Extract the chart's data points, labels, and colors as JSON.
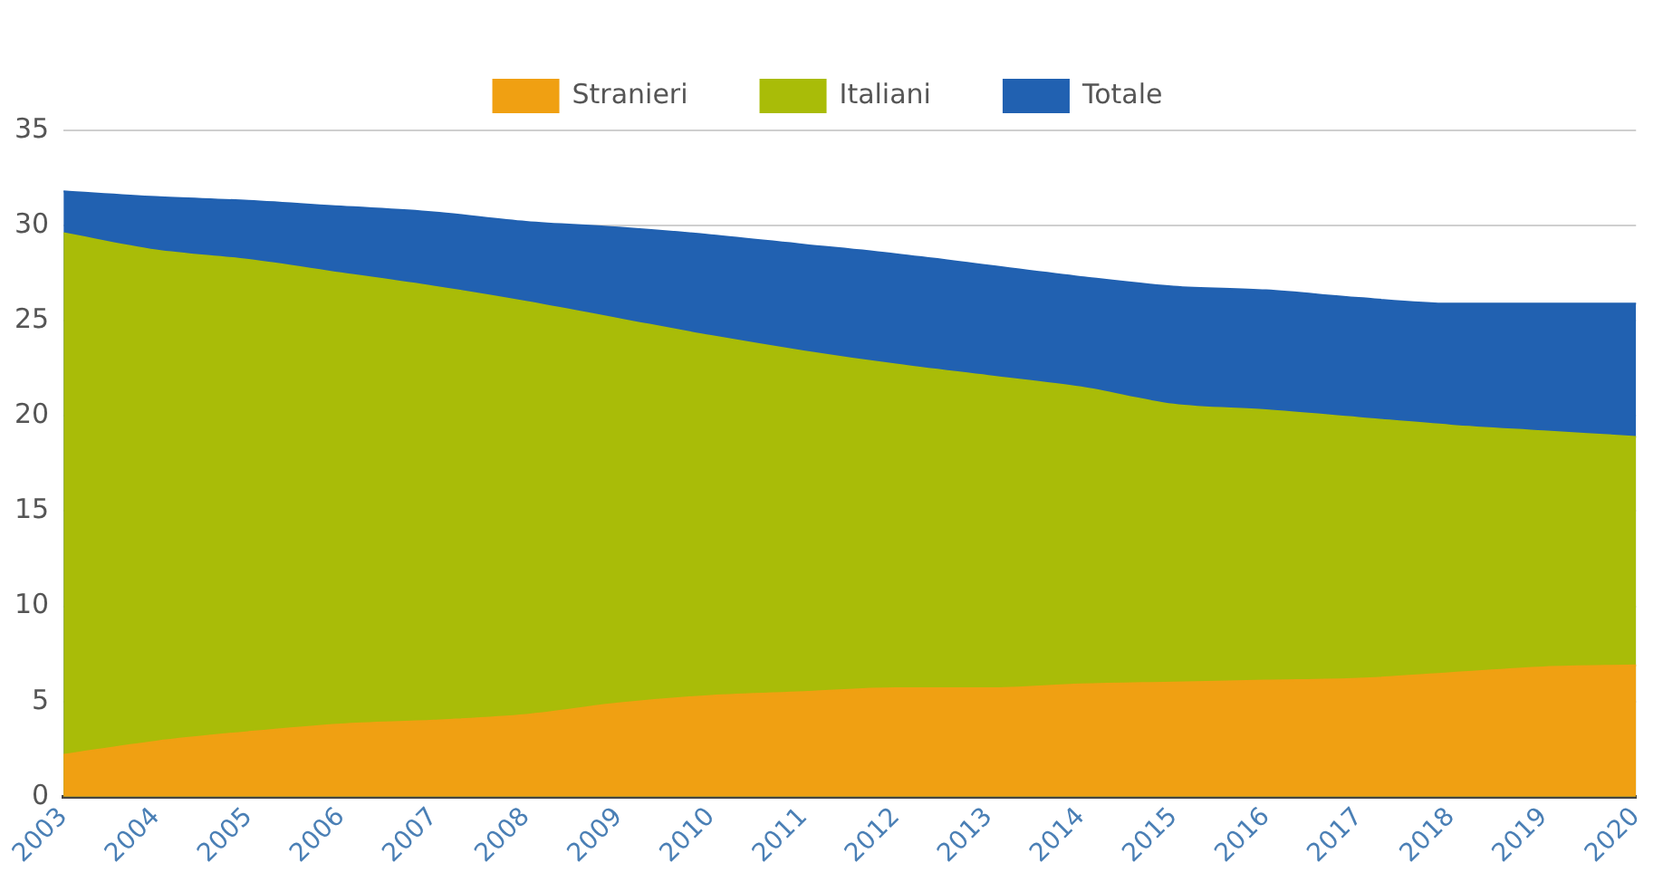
{
  "chart_data": {
    "type": "area",
    "categories": [
      "2003",
      "2004",
      "2005",
      "2006",
      "2007",
      "2008",
      "2009",
      "2010",
      "2011",
      "2012",
      "2013",
      "2014",
      "2015",
      "2016",
      "2017",
      "2018",
      "2019",
      "2020"
    ],
    "series": [
      {
        "name": "Totale",
        "color": "#2161b1",
        "values": [
          31.8,
          31.5,
          31.3,
          31.0,
          30.7,
          30.2,
          29.9,
          29.5,
          29.0,
          28.5,
          27.9,
          27.3,
          26.8,
          26.6,
          26.2,
          25.9,
          25.9,
          25.9
        ]
      },
      {
        "name": "Italiani",
        "color": "#a9bc08",
        "values": [
          29.6,
          28.7,
          28.2,
          27.5,
          26.8,
          26.0,
          25.1,
          24.2,
          23.4,
          22.7,
          22.1,
          21.5,
          20.6,
          20.3,
          19.9,
          19.5,
          19.2,
          18.9
        ]
      },
      {
        "name": "Stranieri",
        "color": "#f0a012",
        "values": [
          2.2,
          2.9,
          3.4,
          3.8,
          4.0,
          4.3,
          4.9,
          5.3,
          5.5,
          5.7,
          5.7,
          5.9,
          6.0,
          6.1,
          6.2,
          6.5,
          6.8,
          6.9
        ]
      }
    ],
    "ylim": [
      0,
      35
    ],
    "yticks": [
      0,
      5,
      10,
      15,
      20,
      25,
      30,
      35
    ],
    "grid": "y",
    "legend": "top"
  }
}
